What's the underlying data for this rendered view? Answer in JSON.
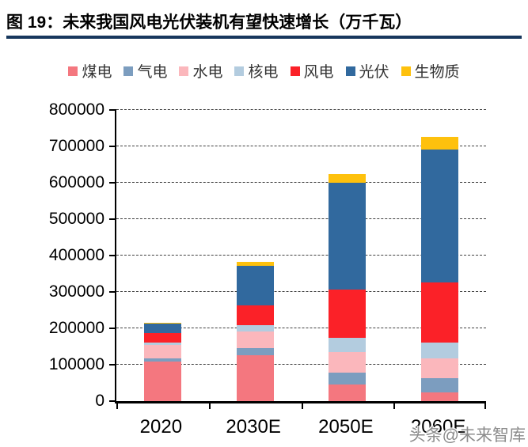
{
  "header": {
    "title": "图 19：未来我国风电光伏装机有望快速增长（万千瓦）"
  },
  "watermark": {
    "text": "头条@未来智库"
  },
  "style": {
    "title_rule_color": "#17375D",
    "axis_color": "#000000",
    "gridline_color": "#3f3f3f",
    "watermark_color": "#8C8C8C",
    "background": "#FFFFFF"
  },
  "chart_data": {
    "type": "bar",
    "stacked": true,
    "title": "未来我国风电光伏装机有望快速增长（万千瓦）",
    "unit": "万千瓦",
    "categories": [
      "2020",
      "2030E",
      "2050E",
      "2060E"
    ],
    "series": [
      {
        "key": "coal",
        "name": "煤电",
        "color": "#F4777F",
        "values": [
          108000,
          127000,
          46000,
          23000
        ]
      },
      {
        "key": "gas",
        "name": "气电",
        "color": "#7C9DBF",
        "values": [
          10000,
          19000,
          33000,
          40000
        ]
      },
      {
        "key": "hydro",
        "name": "水电",
        "color": "#FBB7BC",
        "values": [
          37000,
          45000,
          55000,
          54000
        ]
      },
      {
        "key": "nuclear",
        "name": "核电",
        "color": "#B3CCDF",
        "values": [
          5000,
          19000,
          40000,
          45000
        ]
      },
      {
        "key": "wind",
        "name": "风电",
        "color": "#FB2128",
        "values": [
          28000,
          54000,
          133000,
          165000
        ]
      },
      {
        "key": "solar",
        "name": "光伏",
        "color": "#31699E",
        "values": [
          25000,
          108000,
          292000,
          365000
        ]
      },
      {
        "key": "biomass",
        "name": "生物质",
        "color": "#FEC10D",
        "values": [
          3000,
          11000,
          24000,
          35000
        ]
      }
    ],
    "totals": [
      216000,
      383000,
      623000,
      727000
    ],
    "ylim": [
      0,
      800000
    ],
    "y_ticks": [
      0,
      100000,
      200000,
      300000,
      400000,
      500000,
      600000,
      700000,
      800000
    ],
    "grid": "horizontal-dashed",
    "legend_position": "top"
  }
}
